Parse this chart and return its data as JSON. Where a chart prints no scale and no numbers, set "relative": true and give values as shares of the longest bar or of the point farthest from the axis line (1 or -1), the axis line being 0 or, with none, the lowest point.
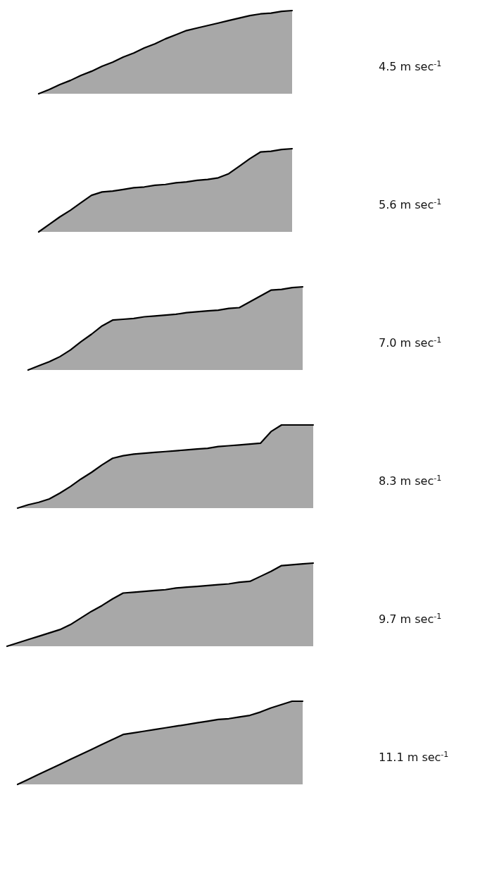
{
  "chart_data": [
    {
      "type": "area",
      "relative": true,
      "categories": [
        null,
        null,
        null,
        null,
        null,
        null,
        null,
        null,
        null,
        null,
        null,
        null,
        null,
        null,
        null,
        null,
        null,
        null,
        null,
        null,
        null,
        null,
        null,
        null,
        null,
        null,
        null,
        null,
        null,
        null,
        null
      ],
      "series": [
        {
          "name": "4.5 m sec$^{-1}$",
          "color": "#a8a8a8",
          "values": [
            null,
            null,
            null,
            0,
            0.05,
            0.11,
            0.16,
            0.22,
            0.27,
            0.33,
            0.38,
            0.44,
            0.49,
            0.55,
            0.6,
            0.66,
            0.71,
            0.76,
            0.79,
            0.82,
            0.85,
            0.88,
            0.91,
            0.94,
            0.96,
            0.97,
            0.99,
            1,
            null,
            null,
            null
          ]
        }
      ]
    },
    {
      "type": "area",
      "relative": true,
      "categories": [
        null,
        null,
        null,
        null,
        null,
        null,
        null,
        null,
        null,
        null,
        null,
        null,
        null,
        null,
        null,
        null,
        null,
        null,
        null,
        null,
        null,
        null,
        null,
        null,
        null,
        null,
        null,
        null,
        null,
        null,
        null
      ],
      "series": [
        {
          "name": "5.6 m sec$^{-1}$",
          "color": "#a8a8a8",
          "values": [
            null,
            null,
            null,
            0,
            0.09,
            0.18,
            0.26,
            0.35,
            0.44,
            0.48,
            0.49,
            0.51,
            0.53,
            0.54,
            0.56,
            0.57,
            0.59,
            0.6,
            0.62,
            0.63,
            0.65,
            0.7,
            0.79,
            0.88,
            0.96,
            0.97,
            0.99,
            1,
            null,
            null,
            null
          ]
        }
      ]
    },
    {
      "type": "area",
      "relative": true,
      "categories": [
        null,
        null,
        null,
        null,
        null,
        null,
        null,
        null,
        null,
        null,
        null,
        null,
        null,
        null,
        null,
        null,
        null,
        null,
        null,
        null,
        null,
        null,
        null,
        null,
        null,
        null,
        null,
        null,
        null,
        null,
        null
      ],
      "series": [
        {
          "name": "7.0 m sec$^{-1}$",
          "color": "#a8a8a8",
          "values": [
            null,
            null,
            0,
            0.05,
            0.1,
            0.16,
            0.24,
            0.34,
            0.43,
            0.53,
            0.6,
            0.61,
            0.62,
            0.64,
            0.65,
            0.66,
            0.67,
            0.69,
            0.7,
            0.71,
            0.72,
            0.74,
            0.75,
            0.82,
            0.89,
            0.96,
            0.97,
            0.99,
            1,
            null,
            null
          ]
        }
      ]
    },
    {
      "type": "area",
      "relative": true,
      "categories": [
        null,
        null,
        null,
        null,
        null,
        null,
        null,
        null,
        null,
        null,
        null,
        null,
        null,
        null,
        null,
        null,
        null,
        null,
        null,
        null,
        null,
        null,
        null,
        null,
        null,
        null,
        null,
        null,
        null,
        null,
        null
      ],
      "series": [
        {
          "name": "8.3 m sec$^{-1}$",
          "color": "#a8a8a8",
          "values": [
            null,
            0,
            0.04,
            0.07,
            0.11,
            0.18,
            0.26,
            0.35,
            0.43,
            0.52,
            0.6,
            0.63,
            0.65,
            0.66,
            0.67,
            0.68,
            0.69,
            0.7,
            0.71,
            0.72,
            0.74,
            0.75,
            0.76,
            0.77,
            0.78,
            0.92,
            1,
            1,
            1,
            1,
            null
          ]
        }
      ]
    },
    {
      "type": "area",
      "relative": true,
      "categories": [
        null,
        null,
        null,
        null,
        null,
        null,
        null,
        null,
        null,
        null,
        null,
        null,
        null,
        null,
        null,
        null,
        null,
        null,
        null,
        null,
        null,
        null,
        null,
        null,
        null,
        null,
        null,
        null,
        null,
        null,
        null
      ],
      "series": [
        {
          "name": "9.7 m sec$^{-1}$",
          "color": "#a8a8a8",
          "values": [
            0,
            0.04,
            0.08,
            0.12,
            0.16,
            0.2,
            0.26,
            0.34,
            0.42,
            0.49,
            0.57,
            0.64,
            0.65,
            0.66,
            0.67,
            0.68,
            0.7,
            0.71,
            0.72,
            0.73,
            0.74,
            0.75,
            0.77,
            0.78,
            0.84,
            0.9,
            0.97,
            0.98,
            0.99,
            1,
            null
          ]
        }
      ]
    },
    {
      "type": "area",
      "relative": true,
      "categories": [
        null,
        null,
        null,
        null,
        null,
        null,
        null,
        null,
        null,
        null,
        null,
        null,
        null,
        null,
        null,
        null,
        null,
        null,
        null,
        null,
        null,
        null,
        null,
        null,
        null,
        null,
        null,
        null,
        null,
        null,
        null
      ],
      "series": [
        {
          "name": "11.1 m sec$^{-1}$",
          "color": "#a8a8a8",
          "values": [
            null,
            0,
            0.06,
            0.12,
            0.18,
            0.24,
            0.3,
            0.36,
            0.42,
            0.48,
            0.54,
            0.6,
            0.62,
            0.64,
            0.66,
            0.68,
            0.7,
            0.72,
            0.74,
            0.76,
            0.78,
            0.79,
            0.81,
            0.83,
            0.87,
            0.92,
            0.96,
            1,
            1,
            null,
            null
          ]
        }
      ]
    }
  ]
}
